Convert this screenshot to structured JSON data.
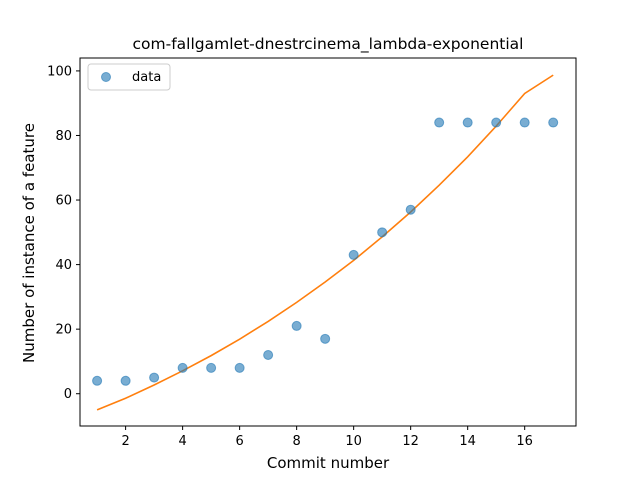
{
  "chart_data": {
    "type": "scatter",
    "title": "com-fallgamlet-dnestrcinema_lambda-exponential",
    "xlabel": "Commit number",
    "ylabel": "Number of instance of a feature",
    "xlim": [
      0.4,
      17.8
    ],
    "ylim": [
      -10,
      104
    ],
    "xticks": [
      2,
      4,
      6,
      8,
      10,
      12,
      14,
      16
    ],
    "yticks": [
      0,
      20,
      40,
      60,
      80,
      100
    ],
    "grid": false,
    "legend_position": "upper-left",
    "series": [
      {
        "name": "data",
        "kind": "points",
        "color": "#1f77b4",
        "x": [
          1,
          2,
          3,
          4,
          5,
          6,
          7,
          8,
          9,
          10,
          11,
          12,
          13,
          14,
          15,
          16,
          17
        ],
        "y": [
          4,
          4,
          5,
          8,
          8,
          8,
          12,
          21,
          17,
          43,
          50,
          57,
          84,
          84,
          84,
          84,
          84
        ]
      },
      {
        "kind": "line",
        "color": "#ff7f0e",
        "x": [
          1,
          2,
          3,
          4,
          5,
          6,
          7,
          8,
          9,
          10,
          11,
          12,
          13,
          14,
          15,
          16,
          17
        ],
        "y": [
          -5.0,
          -1.4,
          2.7,
          7.1,
          11.8,
          16.9,
          22.4,
          28.3,
          34.6,
          41.3,
          48.6,
          56.3,
          64.6,
          73.4,
          82.9,
          93.0,
          98.7
        ]
      }
    ]
  }
}
